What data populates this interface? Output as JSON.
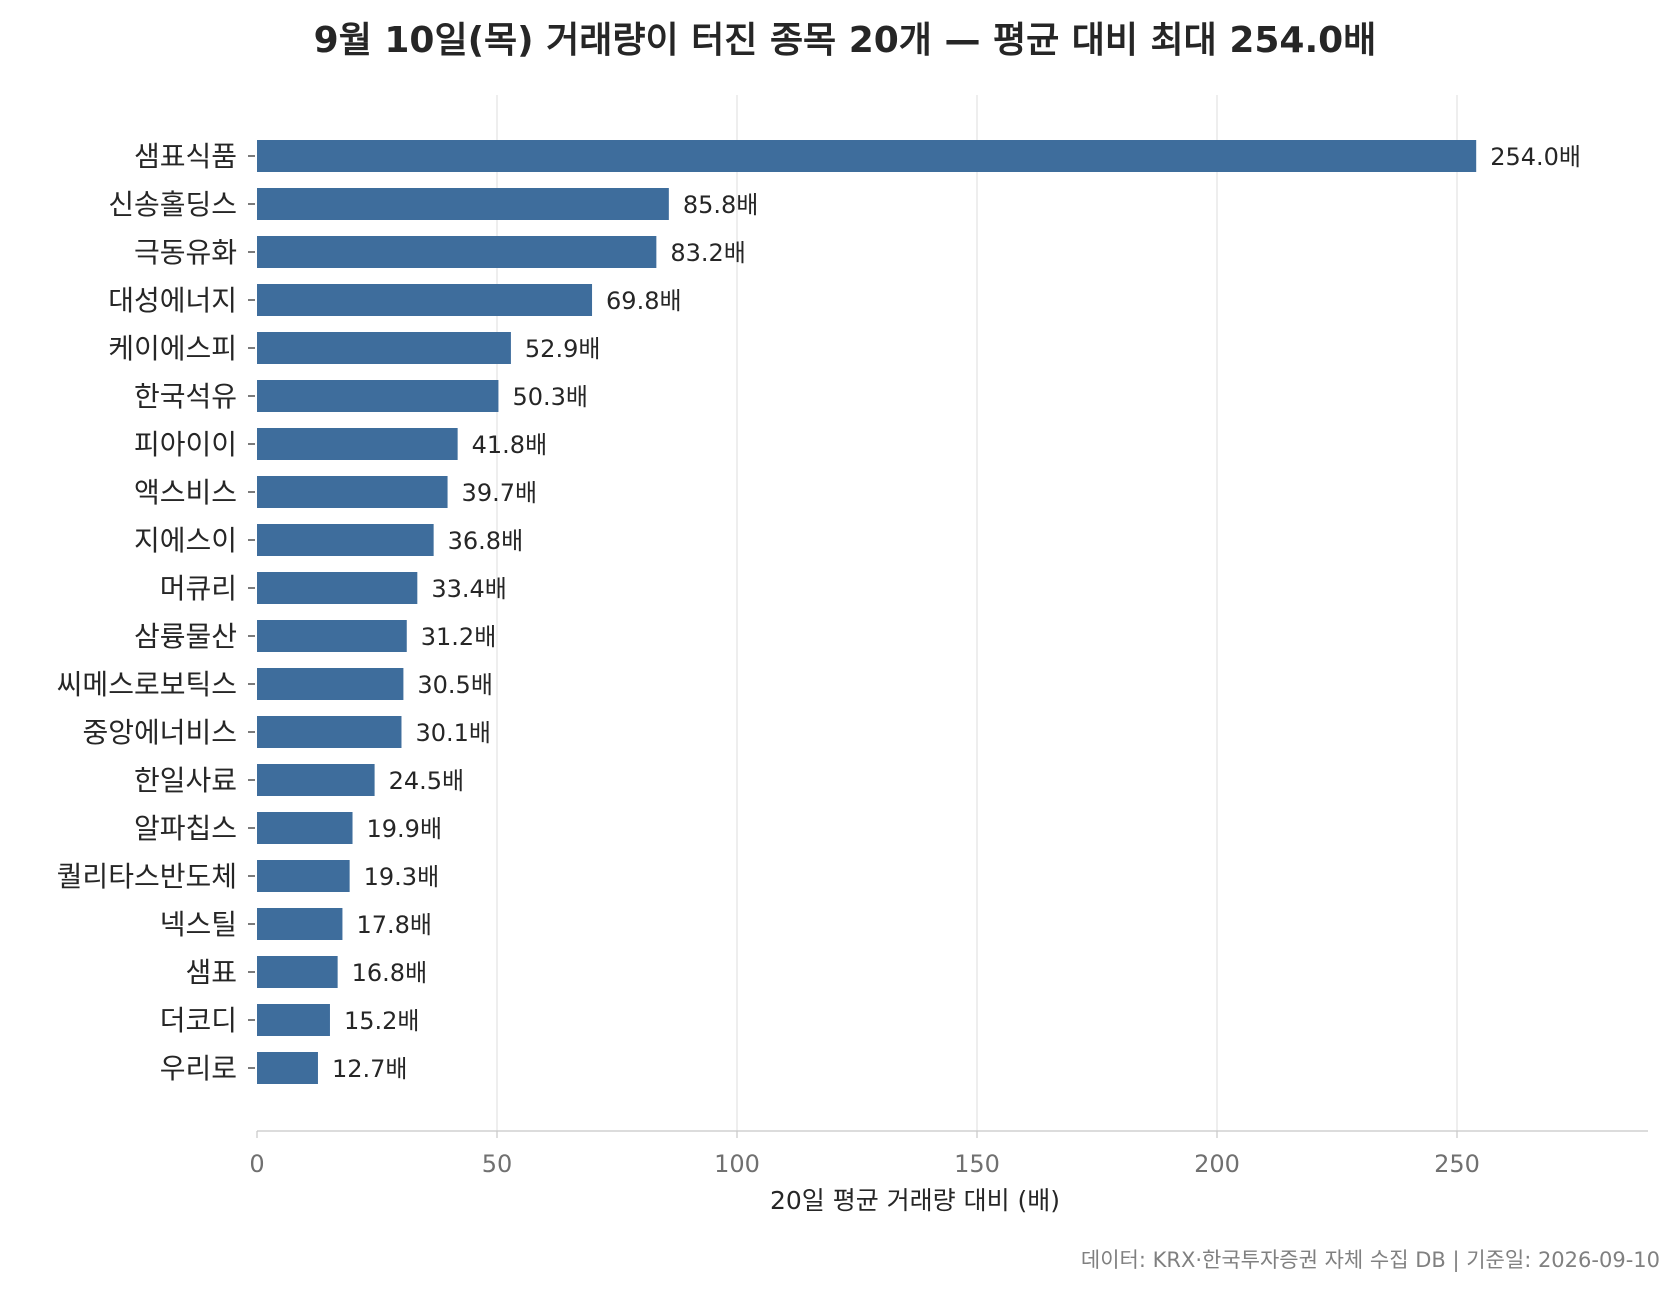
{
  "chart_data": {
    "type": "bar",
    "orientation": "horizontal",
    "title": "9월 10일(목) 거래량이 터진 종목 20개 — 평균 대비 최대 254.0배",
    "xlabel": "20일 평균 거래량 대비 (배)",
    "ylabel": "",
    "xlim": [
      0,
      290
    ],
    "xticks": [
      "0",
      "50",
      "100",
      "150",
      "200",
      "250"
    ],
    "grid": "vertical",
    "value_suffix": "배",
    "bar_color": "#3e6d9c",
    "categories": [
      "샘표식품",
      "신송홀딩스",
      "극동유화",
      "대성에너지",
      "케이에스피",
      "한국석유",
      "피아이이",
      "액스비스",
      "지에스이",
      "머큐리",
      "삼륭물산",
      "씨메스로보틱스",
      "중앙에너비스",
      "한일사료",
      "알파칩스",
      "퀄리타스반도체",
      "넥스틸",
      "샘표",
      "더코디",
      "우리로"
    ],
    "values": [
      254.0,
      85.8,
      83.2,
      69.8,
      52.9,
      50.3,
      41.8,
      39.7,
      36.8,
      33.4,
      31.2,
      30.5,
      30.1,
      24.5,
      19.9,
      19.3,
      17.8,
      16.8,
      15.2,
      12.7
    ],
    "value_labels": [
      "254.0배",
      "85.8배",
      "83.2배",
      "69.8배",
      "52.9배",
      "50.3배",
      "41.8배",
      "39.7배",
      "36.8배",
      "33.4배",
      "31.2배",
      "30.5배",
      "30.1배",
      "24.5배",
      "19.9배",
      "19.3배",
      "17.8배",
      "16.8배",
      "15.2배",
      "12.7배"
    ]
  },
  "source_note": "데이터: KRX·한국투자증권 자체 수집 DB  |  기준일: 2026-09-10"
}
